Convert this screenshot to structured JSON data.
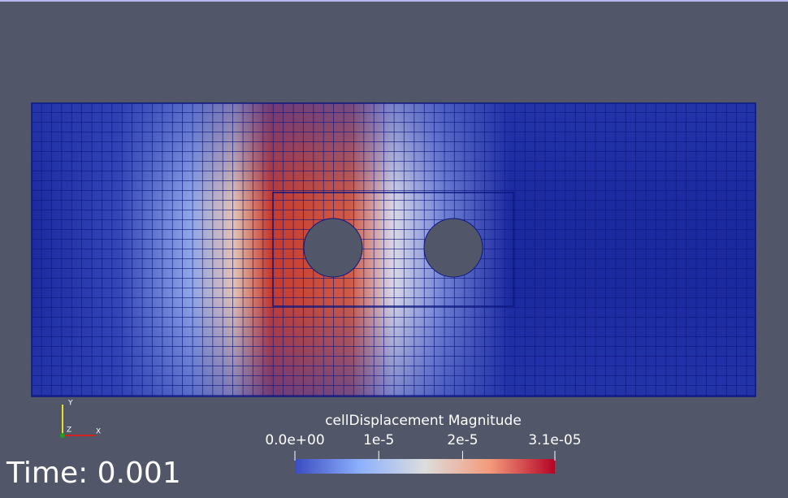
{
  "colorbar": {
    "title": "cellDisplacement Magnitude",
    "range": [
      0,
      3.1e-05
    ],
    "ticks": [
      {
        "value": 0,
        "label": "0.0e+00"
      },
      {
        "value": 1e-05,
        "label": "1e-5"
      },
      {
        "value": 2e-05,
        "label": "2e-5"
      },
      {
        "value": 3.1e-05,
        "label": "3.1e-05"
      }
    ]
  },
  "time_label": "Time: 0.001",
  "axes": {
    "x": "X",
    "y": "Y",
    "z": "Z"
  }
}
